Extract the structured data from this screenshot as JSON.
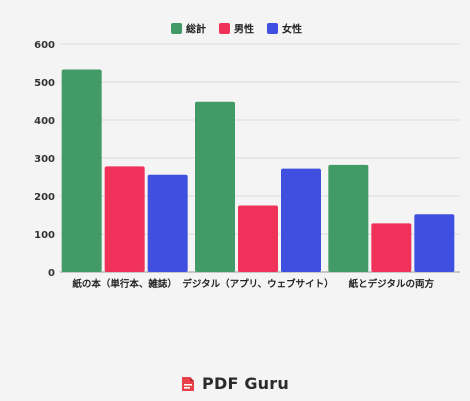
{
  "chart_data": {
    "type": "bar",
    "categories": [
      "紙の本（単行本、雑誌）",
      "デジタル（アプリ、ウェブサイト）",
      "紙とデジタルの両方"
    ],
    "series": [
      {
        "name": "総計",
        "color": "#429b66",
        "values": [
          533,
          448,
          282
        ]
      },
      {
        "name": "男性",
        "color": "#f0325a",
        "values": [
          278,
          175,
          128
        ]
      },
      {
        "name": "女性",
        "color": "#3f4fe0",
        "values": [
          256,
          272,
          152
        ]
      }
    ],
    "ylim": [
      0,
      600
    ],
    "yticks": [
      "0",
      "100",
      "200",
      "300",
      "400",
      "500",
      "600"
    ],
    "grid": true,
    "legend": "top-center",
    "title": "",
    "xlabel": "",
    "ylabel": ""
  },
  "brand": {
    "logo_icon": "pdf-guru-logo-icon",
    "name": "PDF Guru"
  }
}
